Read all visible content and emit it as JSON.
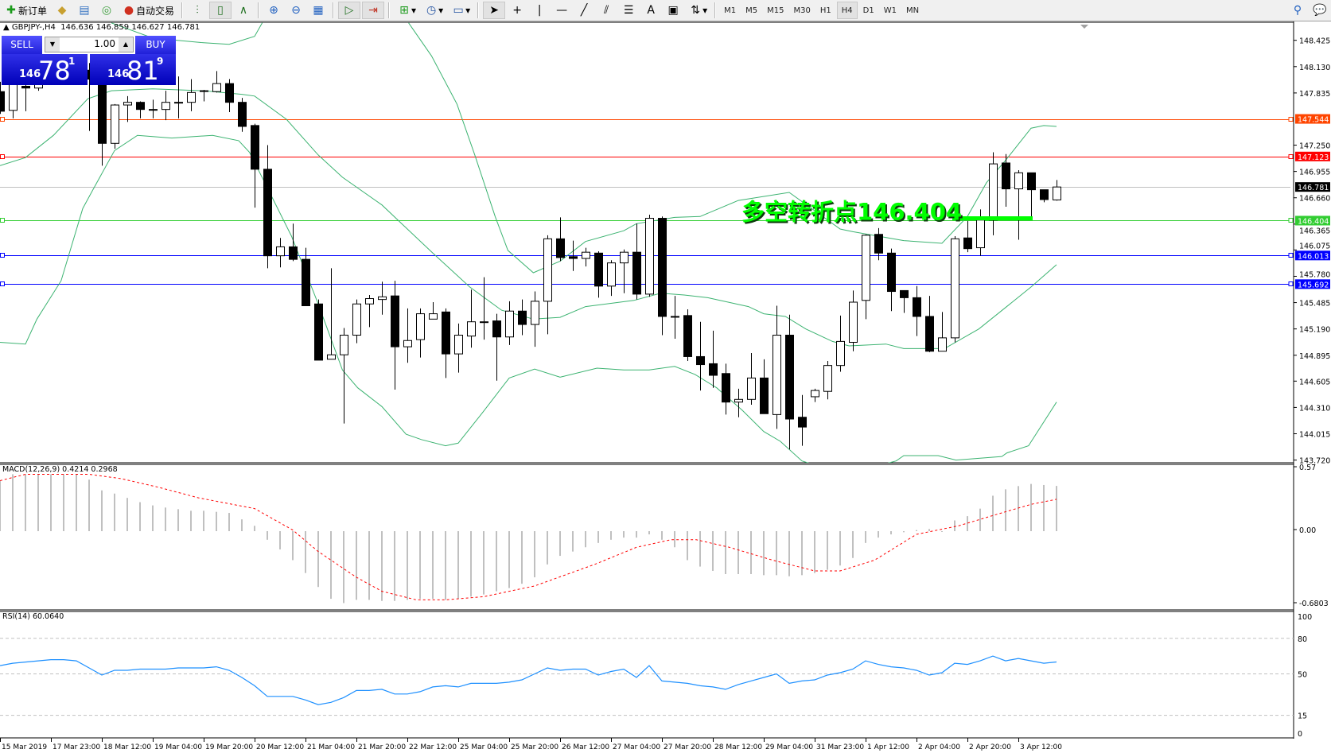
{
  "toolbar": {
    "new_order": "新订单",
    "auto_trading": "自动交易",
    "icons": [
      "new-order-icon",
      "market-watch-icon",
      "navigator-icon",
      "signals-icon",
      "auto-trading-icon",
      "bar-chart-icon",
      "candlestick-icon",
      "line-chart-icon",
      "zoom-in-icon",
      "zoom-out-icon",
      "tile-windows-icon",
      "auto-scroll-icon",
      "chart-shift-icon",
      "indicators-icon",
      "periods-icon",
      "templates-icon",
      "cursor-icon",
      "crosshair-icon",
      "vertical-line-icon",
      "horizontal-line-icon",
      "trendline-icon",
      "equidistant-channel-icon",
      "fibonacci-icon",
      "text-icon",
      "text-label-icon",
      "arrows-icon",
      "search-icon",
      "chat-icon"
    ],
    "text_tool": "A",
    "timeframes": [
      "M1",
      "M5",
      "M15",
      "M30",
      "H1",
      "H4",
      "D1",
      "W1",
      "MN"
    ],
    "active_timeframe": "H4"
  },
  "chart_header": {
    "symbol": "GBPJPY-,H4",
    "ohlc": "146.636 146.859 146.627 146.781"
  },
  "trade_panel": {
    "sell_label": "SELL",
    "buy_label": "BUY",
    "lot": "1.00",
    "sell_price": {
      "prefix": "146",
      "main": "78",
      "sup": "1"
    },
    "buy_price": {
      "prefix": "146",
      "main": "81",
      "sup": "9"
    }
  },
  "price_axis": [
    "148.425",
    "148.130",
    "147.835",
    "147.250",
    "146.955",
    "146.660",
    "146.365",
    "146.075",
    "145.780",
    "145.485",
    "145.190",
    "144.895",
    "144.605",
    "144.310",
    "144.015",
    "143.720"
  ],
  "hlines": [
    {
      "price": 147.544,
      "label": "147.544",
      "color": "#FF4500"
    },
    {
      "price": 147.123,
      "label": "147.123",
      "color": "#FF0000"
    },
    {
      "price": 146.781,
      "label": "146.781",
      "color": "#C0C0C0",
      "label_bg": "#000000"
    },
    {
      "price": 146.404,
      "label": "146.404",
      "color": "#32CD32"
    },
    {
      "price": 146.013,
      "label": "146.013",
      "color": "#0000FF"
    },
    {
      "price": 145.692,
      "label": "145.692",
      "color": "#0000FF"
    }
  ],
  "annotation": {
    "text": "多空转折点146.404",
    "color": "#00FF00",
    "level": 146.404
  },
  "time_axis": [
    "15 Mar 2019",
    "17 Mar 23:00",
    "18 Mar 12:00",
    "19 Mar 04:00",
    "19 Mar 20:00",
    "20 Mar 12:00",
    "21 Mar 04:00",
    "21 Mar 20:00",
    "22 Mar 12:00",
    "25 Mar 04:00",
    "25 Mar 20:00",
    "26 Mar 12:00",
    "27 Mar 04:00",
    "27 Mar 20:00",
    "28 Mar 12:00",
    "29 Mar 04:00",
    "31 Mar 23:00",
    "1 Apr 12:00",
    "2 Apr 04:00",
    "2 Apr 20:00",
    "3 Apr 12:00"
  ],
  "macd": {
    "label": "MACD(12,26,9) 0.4214 0.2968",
    "axis": [
      "0.57",
      "0.00",
      "-0.6803"
    ]
  },
  "rsi": {
    "label": "RSI(14) 60.0640",
    "axis": [
      "100",
      "80",
      "50",
      "15",
      "0"
    ]
  },
  "chart_data": {
    "type": "candlestick",
    "symbol": "GBPJPY-",
    "timeframe": "H4",
    "ylim": [
      143.72,
      148.425
    ],
    "open": [
      147.85,
      147.64,
      147.91,
      147.89,
      148.02,
      148.12,
      148.07,
      148.09,
      147.99,
      147.27,
      147.7,
      147.73,
      147.65,
      147.65,
      147.73,
      147.73,
      147.86,
      147.85,
      147.94,
      147.73,
      147.47,
      146.98,
      146.01,
      146.11,
      145.97,
      145.47,
      144.85,
      144.9,
      145.12,
      145.47,
      145.52,
      145.56,
      144.99,
      145.07,
      145.3,
      145.38,
      144.91,
      145.11,
      145.27,
      145.28,
      145.1,
      145.39,
      145.24,
      145.5,
      146.2,
      146.0,
      145.98,
      146.04,
      145.67,
      145.93,
      146.05,
      145.58,
      146.43,
      145.33,
      145.34,
      144.88,
      144.8,
      144.69,
      144.37,
      144.4,
      144.64,
      144.23,
      145.12,
      144.2,
      144.43,
      144.49,
      144.78,
      145.04,
      145.51,
      146.25,
      146.04,
      145.62,
      145.54,
      145.33,
      144.94,
      145.09,
      146.21,
      146.1,
      146.41,
      147.05,
      146.76,
      146.94,
      146.75,
      146.636
    ],
    "high": [
      147.96,
      147.98,
      148.01,
      148.09,
      148.22,
      148.27,
      148.17,
      148.17,
      148.02,
      147.71,
      147.8,
      147.74,
      147.76,
      147.86,
      148.02,
      147.99,
      147.87,
      148.08,
      147.99,
      147.78,
      147.49,
      147.25,
      146.21,
      146.37,
      146.1,
      145.52,
      145.87,
      145.2,
      145.52,
      145.57,
      145.72,
      145.73,
      145.42,
      145.42,
      145.49,
      145.42,
      145.25,
      145.63,
      145.77,
      145.36,
      145.5,
      145.52,
      145.61,
      146.24,
      146.44,
      146.18,
      146.1,
      146.06,
      145.96,
      146.08,
      146.37,
      146.47,
      146.45,
      145.56,
      145.41,
      145.27,
      145.17,
      144.8,
      144.52,
      144.92,
      144.85,
      145.45,
      145.35,
      144.45,
      144.52,
      144.83,
      145.34,
      145.62,
      146.25,
      146.32,
      146.09,
      145.62,
      145.67,
      145.56,
      145.38,
      146.23,
      146.4,
      146.53,
      147.17,
      147.15,
      146.97,
      146.94,
      146.75,
      146.859
    ],
    "low": [
      147.6,
      147.55,
      147.63,
      147.86,
      147.95,
      147.97,
      147.97,
      147.41,
      147.02,
      147.21,
      147.51,
      147.55,
      147.55,
      147.53,
      147.55,
      147.63,
      147.74,
      147.84,
      147.62,
      147.4,
      146.55,
      145.87,
      145.88,
      145.95,
      145.45,
      144.84,
      144.85,
      144.13,
      145.03,
      145.21,
      145.35,
      144.51,
      144.81,
      144.87,
      145.3,
      144.64,
      144.7,
      144.98,
      145.07,
      144.61,
      145.01,
      145.12,
      144.99,
      145.13,
      145.95,
      145.84,
      145.89,
      145.54,
      145.56,
      145.59,
      145.52,
      145.55,
      145.12,
      145.08,
      144.83,
      144.5,
      144.53,
      144.23,
      144.2,
      144.34,
      144.24,
      144.07,
      143.84,
      143.88,
      144.37,
      144.4,
      144.71,
      144.94,
      145.3,
      145.96,
      145.39,
      145.37,
      145.11,
      144.93,
      144.94,
      145.04,
      146.05,
      146.01,
      146.24,
      146.56,
      146.19,
      146.45,
      146.61,
      146.627
    ],
    "close": [
      147.63,
      147.93,
      147.89,
      148.02,
      148.12,
      148.07,
      148.09,
      147.99,
      147.27,
      147.7,
      147.73,
      147.65,
      147.65,
      147.73,
      147.73,
      147.84,
      147.86,
      147.94,
      147.73,
      147.46,
      146.98,
      146.01,
      146.11,
      145.97,
      145.45,
      144.84,
      144.9,
      145.12,
      145.47,
      145.53,
      145.55,
      144.99,
      145.06,
      145.36,
      145.36,
      144.91,
      145.12,
      145.27,
      145.27,
      145.1,
      145.39,
      145.24,
      145.5,
      146.2,
      145.99,
      145.98,
      146.05,
      145.67,
      145.93,
      146.05,
      145.58,
      146.43,
      145.33,
      145.33,
      144.88,
      144.79,
      144.67,
      144.37,
      144.4,
      144.64,
      144.24,
      145.12,
      144.18,
      144.09,
      144.5,
      144.78,
      145.05,
      145.49,
      146.24,
      146.04,
      145.61,
      145.54,
      145.33,
      144.94,
      145.09,
      146.2,
      146.09,
      146.41,
      147.04,
      146.76,
      146.94,
      146.75,
      146.64,
      146.781
    ],
    "bollinger": {
      "color": "#3CB371",
      "upper": [
        [
          [
            8.75,
            148.62
          ],
          [
            12,
            148.45
          ],
          [
            15.8,
            148.4
          ],
          [
            18,
            148.38
          ],
          [
            20,
            148.47
          ],
          [
            20.6,
            148.62
          ]
        ],
        [
          [
            32.1,
            148.62
          ],
          [
            33.9,
            148.25
          ],
          [
            35.9,
            147.71
          ],
          [
            37.3,
            147.14
          ],
          [
            38.9,
            146.45
          ],
          [
            39.9,
            146.07
          ],
          [
            41.9,
            145.82
          ],
          [
            44,
            145.95
          ],
          [
            46,
            146.17
          ],
          [
            49,
            146.29
          ],
          [
            50,
            146.37
          ],
          [
            53,
            146.44
          ],
          [
            55,
            146.45
          ],
          [
            58,
            146.63
          ],
          [
            62,
            146.72
          ],
          [
            66,
            146.31
          ],
          [
            67,
            146.28
          ],
          [
            71,
            146.18
          ],
          [
            74,
            146.15
          ],
          [
            76,
            146.45
          ],
          [
            77.5,
            146.83
          ],
          [
            79,
            147.08
          ],
          [
            81,
            147.44
          ],
          [
            82,
            147.47
          ],
          [
            83,
            147.46
          ]
        ]
      ],
      "middle": [
        [
          [
            0,
            147.02
          ],
          [
            2,
            147.11
          ],
          [
            4.2,
            147.36
          ],
          [
            6.9,
            147.77
          ],
          [
            8.75,
            147.86
          ],
          [
            12,
            147.88
          ],
          [
            16,
            147.86
          ],
          [
            19,
            147.82
          ],
          [
            20,
            147.8
          ],
          [
            22.5,
            147.54
          ],
          [
            25,
            147.14
          ],
          [
            26.9,
            146.89
          ],
          [
            30,
            146.58
          ],
          [
            32,
            146.31
          ],
          [
            34,
            146.04
          ],
          [
            36.9,
            145.66
          ],
          [
            39.4,
            145.4
          ],
          [
            41.9,
            145.3
          ],
          [
            44,
            145.32
          ],
          [
            46,
            145.44
          ],
          [
            49.8,
            145.51
          ],
          [
            51.9,
            145.59
          ],
          [
            53.75,
            145.57
          ],
          [
            55.6,
            145.54
          ],
          [
            58.8,
            145.44
          ],
          [
            60,
            145.36
          ],
          [
            61.7,
            145.33
          ],
          [
            63.3,
            145.19
          ],
          [
            65.4,
            145.05
          ],
          [
            66.7,
            145.0
          ],
          [
            69.6,
            145.02
          ],
          [
            71,
            144.97
          ],
          [
            74.2,
            144.97
          ],
          [
            76.9,
            145.19
          ],
          [
            79,
            145.43
          ],
          [
            81,
            145.66
          ],
          [
            83,
            145.91
          ]
        ]
      ],
      "lower": [
        [
          [
            0,
            145.04
          ],
          [
            2,
            145.02
          ],
          [
            2.9,
            145.3
          ],
          [
            4.8,
            145.73
          ],
          [
            6.5,
            146.54
          ],
          [
            7.3,
            146.75
          ],
          [
            9,
            147.19
          ],
          [
            10.8,
            147.36
          ],
          [
            13.5,
            147.33
          ],
          [
            16.7,
            147.36
          ],
          [
            18.75,
            147.3
          ],
          [
            19.6,
            147.17
          ],
          [
            20.8,
            146.83
          ],
          [
            22.9,
            146.23
          ],
          [
            25,
            145.47
          ],
          [
            26.9,
            144.73
          ],
          [
            28.1,
            144.53
          ],
          [
            30,
            144.32
          ],
          [
            31.9,
            144.01
          ],
          [
            33.1,
            143.95
          ],
          [
            35,
            143.88
          ],
          [
            36,
            143.91
          ],
          [
            37.9,
            144.25
          ],
          [
            40,
            144.64
          ],
          [
            42,
            144.74
          ],
          [
            44,
            144.65
          ],
          [
            46.9,
            144.75
          ],
          [
            49,
            144.73
          ],
          [
            51,
            144.73
          ],
          [
            53,
            144.77
          ],
          [
            54.6,
            144.68
          ],
          [
            56.3,
            144.53
          ],
          [
            58.3,
            144.28
          ],
          [
            60,
            144.04
          ],
          [
            61.3,
            143.93
          ],
          [
            63,
            143.71
          ],
          [
            65,
            143.62
          ],
          [
            68,
            143.62
          ],
          [
            70.4,
            143.71
          ],
          [
            71,
            143.77
          ],
          [
            73.7,
            143.77
          ],
          [
            75.1,
            143.72
          ],
          [
            78.7,
            143.76
          ],
          [
            79.1,
            143.8
          ],
          [
            80.8,
            143.88
          ],
          [
            83,
            144.37
          ]
        ]
      ]
    },
    "macd_hist": [
      0.47,
      0.53,
      0.53,
      0.53,
      0.53,
      0.53,
      0.53,
      0.48,
      0.38,
      0.35,
      0.31,
      0.27,
      0.24,
      0.22,
      0.205,
      0.19,
      0.19,
      0.18,
      0.17,
      0.11,
      0.05,
      -0.08,
      -0.17,
      -0.27,
      -0.39,
      -0.52,
      -0.63,
      -0.67,
      -0.64,
      -0.64,
      -0.65,
      -0.65,
      -0.64,
      -0.63,
      -0.63,
      -0.64,
      -0.63,
      -0.61,
      -0.59,
      -0.56,
      -0.53,
      -0.49,
      -0.43,
      -0.31,
      -0.23,
      -0.19,
      -0.15,
      -0.11,
      -0.08,
      -0.06,
      -0.06,
      -0.03,
      -0.08,
      -0.15,
      -0.27,
      -0.33,
      -0.37,
      -0.4,
      -0.4,
      -0.4,
      -0.41,
      -0.41,
      -0.42,
      -0.41,
      -0.39,
      -0.36,
      -0.32,
      -0.25,
      -0.11,
      -0.06,
      -0.03,
      -0.01,
      0.01,
      0.02,
      0.0,
      0.1,
      0.14,
      0.21,
      0.33,
      0.39,
      0.42,
      0.44,
      0.43,
      0.4214
    ],
    "macd_signal": [
      [
        0,
        0.47
      ],
      [
        2,
        0.53
      ],
      [
        4,
        0.53
      ],
      [
        7,
        0.53
      ],
      [
        9.5,
        0.49
      ],
      [
        12.4,
        0.41
      ],
      [
        15.6,
        0.31
      ],
      [
        20,
        0.21
      ],
      [
        23,
        0.01
      ],
      [
        25,
        -0.19
      ],
      [
        28,
        -0.43
      ],
      [
        30,
        -0.56
      ],
      [
        32.7,
        -0.64
      ],
      [
        35,
        -0.64
      ],
      [
        38,
        -0.61
      ],
      [
        42,
        -0.51
      ],
      [
        46.7,
        -0.31
      ],
      [
        50,
        -0.15
      ],
      [
        52.7,
        -0.08
      ],
      [
        54.7,
        -0.08
      ],
      [
        57.3,
        -0.15
      ],
      [
        60.7,
        -0.27
      ],
      [
        64,
        -0.37
      ],
      [
        66,
        -0.37
      ],
      [
        68.7,
        -0.27
      ],
      [
        72,
        -0.03
      ],
      [
        75.3,
        0.05
      ],
      [
        78.7,
        0.17
      ],
      [
        81,
        0.25
      ],
      [
        83,
        0.2968
      ]
    ],
    "macd_ylim": [
      -0.6803,
      0.57
    ],
    "rsi_values": [
      57,
      59,
      60,
      61,
      62,
      62,
      61,
      55,
      49,
      53,
      53,
      54,
      54,
      54,
      55,
      55,
      55,
      56,
      53,
      47,
      40,
      31,
      31,
      31,
      28,
      24,
      26,
      30,
      36,
      36,
      37,
      33,
      33,
      35,
      39,
      40,
      39,
      42,
      42,
      42,
      43,
      45,
      50,
      55,
      53,
      54,
      54,
      49,
      52,
      54,
      47,
      57,
      44,
      43,
      42,
      40,
      39,
      37,
      41,
      44,
      47,
      50,
      42,
      44,
      45,
      49,
      51,
      54,
      61,
      58,
      56,
      55,
      53,
      49,
      51,
      59,
      58,
      61,
      65,
      61,
      63,
      61,
      59,
      60.064
    ],
    "rsi_levels": [
      80,
      50,
      15
    ],
    "rsi_ylim": [
      0,
      100
    ]
  }
}
